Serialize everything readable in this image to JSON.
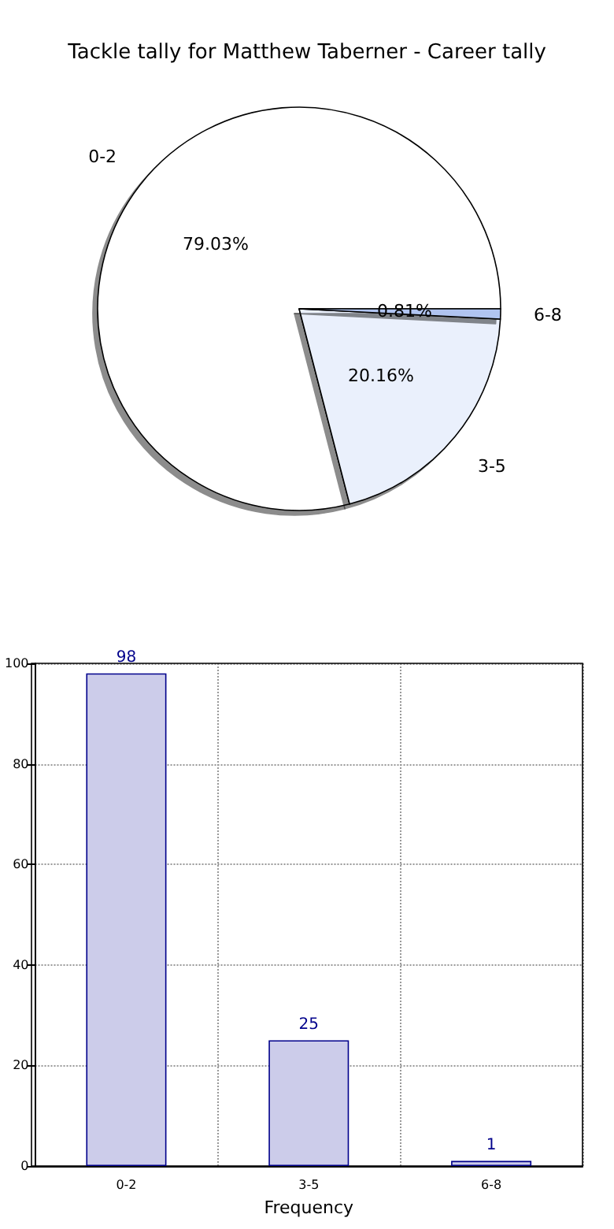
{
  "chart_data": [
    {
      "type": "pie",
      "title": "Tackle tally for Matthew Taberner - Career tally",
      "categories": [
        "0-2",
        "3-5",
        "6-8"
      ],
      "values": [
        79.03,
        20.16,
        0.81
      ],
      "colors": [
        "#ffffff",
        "#eaf0fc",
        "#b0c4f0"
      ],
      "value_labels": [
        "79.03%",
        "20.16%",
        "0.81%"
      ],
      "legend": false
    },
    {
      "type": "bar",
      "categories": [
        "0-2",
        "3-5",
        "6-8"
      ],
      "values": [
        98,
        25,
        1
      ],
      "color": "#ccccea",
      "xlabel": "Frequency",
      "ylim": [
        0,
        100
      ],
      "yticks": [
        0,
        20,
        40,
        60,
        80,
        100
      ],
      "grid": true,
      "data_labels": true
    }
  ]
}
